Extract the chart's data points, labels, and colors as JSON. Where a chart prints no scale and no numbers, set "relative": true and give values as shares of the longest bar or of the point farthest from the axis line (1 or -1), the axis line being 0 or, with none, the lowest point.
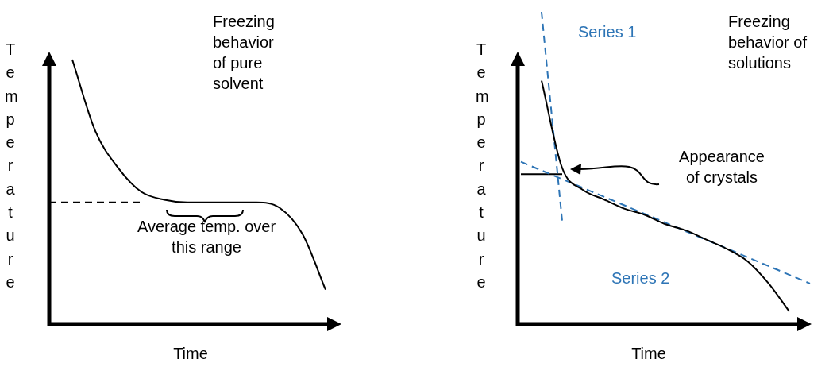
{
  "chart_data": [
    {
      "type": "line",
      "title": "Freezing behavior of pure solvent",
      "xlabel": "Time",
      "ylabel": "Temperature",
      "relative": true,
      "marker": "none",
      "legend": false,
      "categories": [
        null,
        null,
        null,
        null,
        null,
        null,
        null,
        null,
        null,
        null,
        null,
        null,
        null
      ],
      "annotations": [
        "Average temp. over this range"
      ],
      "series": [
        {
          "color": "#000000",
          "line_style": "solid",
          "values": [
            null,
            1.0,
            0.73,
            0.59,
            0.5,
            0.47,
            0.46,
            0.46,
            0.46,
            0.46,
            0.44,
            0.34,
            0.13
          ]
        },
        {
          "color": "#000000",
          "line_style": "dashed",
          "values": [
            0.46,
            0.46,
            0.46,
            0.46,
            0.46,
            null,
            null,
            null,
            null,
            null,
            null,
            null,
            null
          ]
        }
      ]
    },
    {
      "type": "line",
      "title": "Freezing behavior of solutions",
      "xlabel": "Time",
      "ylabel": "Temperature",
      "relative": true,
      "marker": "none",
      "legend": false,
      "categories": [
        null,
        null,
        null,
        null,
        null,
        null,
        null,
        null,
        null,
        null,
        null,
        null,
        null,
        null,
        null
      ],
      "annotations": [
        "Appearance of crystals"
      ],
      "series": [
        {
          "color": "#000000",
          "line_style": "solid",
          "values": [
            null,
            0.78,
            0.5,
            0.43,
            0.4,
            0.37,
            0.35,
            0.32,
            0.3,
            0.27,
            0.24,
            0.2,
            0.13,
            0.04,
            null
          ]
        },
        {
          "name": "Series 1",
          "color": "#2e75b6",
          "line_style": "dashed",
          "values": [
            null,
            1.0,
            0.33,
            null,
            null,
            null,
            null,
            null,
            null,
            null,
            null,
            null,
            null,
            null,
            null
          ]
        },
        {
          "name": "Series 2",
          "color": "#2e75b6",
          "line_style": "dashed",
          "values": [
            0.52,
            null,
            null,
            null,
            null,
            null,
            null,
            null,
            null,
            null,
            null,
            null,
            null,
            null,
            0.13
          ]
        },
        {
          "color": "#000000",
          "line_style": "solid",
          "values": [
            0.48,
            0.48,
            0.48,
            null,
            null,
            null,
            null,
            null,
            null,
            null,
            null,
            null,
            null,
            null,
            null
          ]
        }
      ]
    }
  ]
}
